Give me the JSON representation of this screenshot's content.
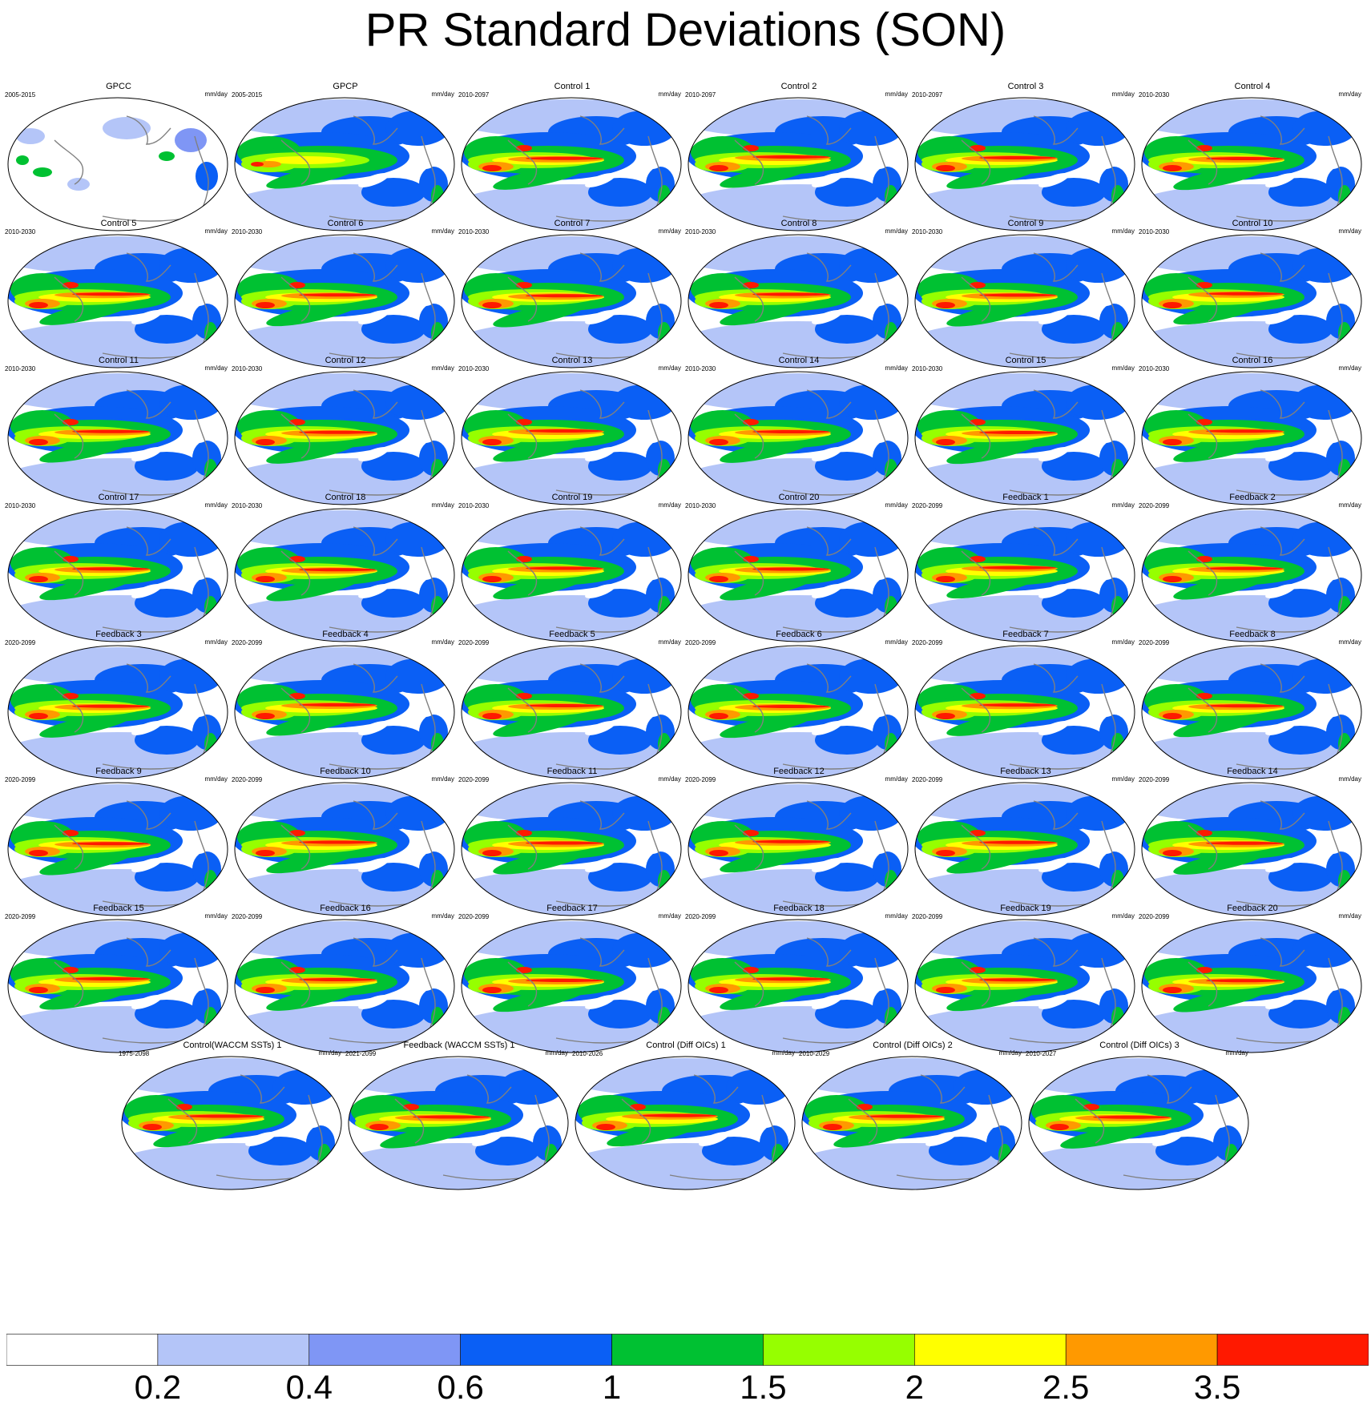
{
  "title": "PR Standard Deviations (SON)",
  "panels": [
    {
      "title": "GPCC",
      "years": "2005-2015",
      "units": "mm/day",
      "kind": "gpcc"
    },
    {
      "title": "GPCP",
      "years": "2005-2015",
      "units": "mm/day",
      "kind": "gpcp"
    },
    {
      "title": "Control 1",
      "years": "2010-2097",
      "units": "mm/day",
      "kind": "model"
    },
    {
      "title": "Control 2",
      "years": "2010-2097",
      "units": "mm/day",
      "kind": "model"
    },
    {
      "title": "Control 3",
      "years": "2010-2097",
      "units": "mm/day",
      "kind": "model"
    },
    {
      "title": "Control 4",
      "years": "2010-2030",
      "units": "mm/day",
      "kind": "model"
    },
    {
      "title": "Control 5",
      "years": "2010-2030",
      "units": "mm/day",
      "kind": "model"
    },
    {
      "title": "Control 6",
      "years": "2010-2030",
      "units": "mm/day",
      "kind": "model"
    },
    {
      "title": "Control 7",
      "years": "2010-2030",
      "units": "mm/day",
      "kind": "model"
    },
    {
      "title": "Control 8",
      "years": "2010-2030",
      "units": "mm/day",
      "kind": "model"
    },
    {
      "title": "Control 9",
      "years": "2010-2030",
      "units": "mm/day",
      "kind": "model"
    },
    {
      "title": "Control 10",
      "years": "2010-2030",
      "units": "mm/day",
      "kind": "model"
    },
    {
      "title": "Control 11",
      "years": "2010-2030",
      "units": "mm/day",
      "kind": "model"
    },
    {
      "title": "Control 12",
      "years": "2010-2030",
      "units": "mm/day",
      "kind": "model"
    },
    {
      "title": "Control 13",
      "years": "2010-2030",
      "units": "mm/day",
      "kind": "model"
    },
    {
      "title": "Control 14",
      "years": "2010-2030",
      "units": "mm/day",
      "kind": "model"
    },
    {
      "title": "Control 15",
      "years": "2010-2030",
      "units": "mm/day",
      "kind": "model"
    },
    {
      "title": "Control 16",
      "years": "2010-2030",
      "units": "mm/day",
      "kind": "model"
    },
    {
      "title": "Control 17",
      "years": "2010-2030",
      "units": "mm/day",
      "kind": "model"
    },
    {
      "title": "Control 18",
      "years": "2010-2030",
      "units": "mm/day",
      "kind": "model"
    },
    {
      "title": "Control 19",
      "years": "2010-2030",
      "units": "mm/day",
      "kind": "model"
    },
    {
      "title": "Control 20",
      "years": "2010-2030",
      "units": "mm/day",
      "kind": "model"
    },
    {
      "title": "Feedback 1",
      "years": "2020-2099",
      "units": "mm/day",
      "kind": "model"
    },
    {
      "title": "Feedback 2",
      "years": "2020-2099",
      "units": "mm/day",
      "kind": "model"
    },
    {
      "title": "Feedback 3",
      "years": "2020-2099",
      "units": "mm/day",
      "kind": "model"
    },
    {
      "title": "Feedback 4",
      "years": "2020-2099",
      "units": "mm/day",
      "kind": "model"
    },
    {
      "title": "Feedback 5",
      "years": "2020-2099",
      "units": "mm/day",
      "kind": "model"
    },
    {
      "title": "Feedback 6",
      "years": "2020-2099",
      "units": "mm/day",
      "kind": "model"
    },
    {
      "title": "Feedback 7",
      "years": "2020-2099",
      "units": "mm/day",
      "kind": "model"
    },
    {
      "title": "Feedback 8",
      "years": "2020-2099",
      "units": "mm/day",
      "kind": "model"
    },
    {
      "title": "Feedback 9",
      "years": "2020-2099",
      "units": "mm/day",
      "kind": "model"
    },
    {
      "title": "Feedback 10",
      "years": "2020-2099",
      "units": "mm/day",
      "kind": "model"
    },
    {
      "title": "Feedback 11",
      "years": "2020-2099",
      "units": "mm/day",
      "kind": "model"
    },
    {
      "title": "Feedback 12",
      "years": "2020-2099",
      "units": "mm/day",
      "kind": "model"
    },
    {
      "title": "Feedback 13",
      "years": "2020-2099",
      "units": "mm/day",
      "kind": "model"
    },
    {
      "title": "Feedback 14",
      "years": "2020-2099",
      "units": "mm/day",
      "kind": "model"
    },
    {
      "title": "Feedback 15",
      "years": "2020-2099",
      "units": "mm/day",
      "kind": "model"
    },
    {
      "title": "Feedback 16",
      "years": "2020-2099",
      "units": "mm/day",
      "kind": "model"
    },
    {
      "title": "Feedback 17",
      "years": "2020-2099",
      "units": "mm/day",
      "kind": "model"
    },
    {
      "title": "Feedback 18",
      "years": "2020-2099",
      "units": "mm/day",
      "kind": "model"
    },
    {
      "title": "Feedback 19",
      "years": "2020-2099",
      "units": "mm/day",
      "kind": "model"
    },
    {
      "title": "Feedback 20",
      "years": "2020-2099",
      "units": "mm/day",
      "kind": "model"
    },
    {
      "title": "Control(WACCM SSTs) 1",
      "years": "1975-2098",
      "units": "mm/day",
      "kind": "model"
    },
    {
      "title": "Feedback (WACCM SSTs) 1",
      "years": "2021-2099",
      "units": "mm/day",
      "kind": "model"
    },
    {
      "title": "Control (Diff OICs) 1",
      "years": "2010-2026",
      "units": "mm/day",
      "kind": "model"
    },
    {
      "title": "Control (Diff OICs) 2",
      "years": "2010-2029",
      "units": "mm/day",
      "kind": "model"
    },
    {
      "title": "Control (Diff OICs) 3",
      "years": "2010-2027",
      "units": "mm/day",
      "kind": "model"
    }
  ],
  "chart_data": {
    "type": "heatmap",
    "title": "PR Standard Deviations (SON)",
    "units": "mm/day",
    "projection": "Robinson (Pacific-centered)",
    "colorbar": {
      "labels": [
        "0.2",
        "0.4",
        "0.6",
        "1",
        "1.5",
        "2",
        "2.5",
        "3.5"
      ],
      "colors": [
        "#ffffff",
        "#b4c5f8",
        "#7f96f5",
        "#0a5ff5",
        "#00c132",
        "#96ff00",
        "#ffff00",
        "#ff9900",
        "#ff1900"
      ]
    }
  }
}
